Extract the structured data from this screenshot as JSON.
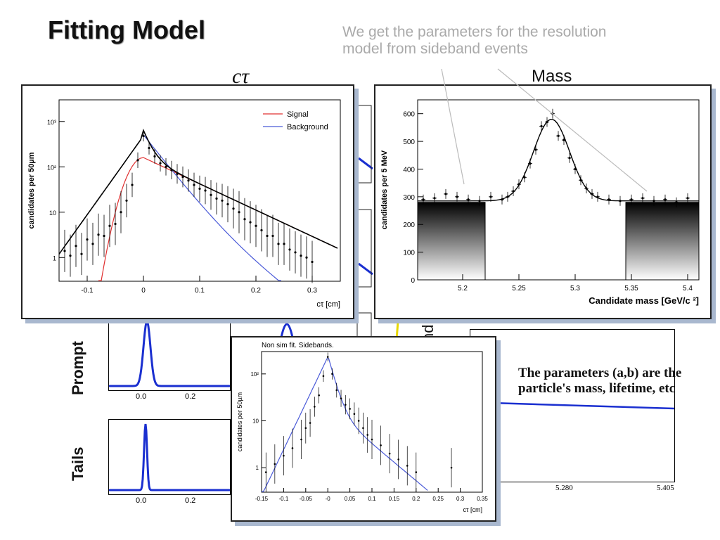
{
  "slide": {
    "title": "Fitting Model",
    "note": "We get the parameters for the resolution model from sideband events",
    "ct_header": "cτ",
    "mass_header": "Mass",
    "params_text": "The parameters (a,b) are the particle's mass, lifetime, etc",
    "prompt_label": "Prompt",
    "tails_label": "Tails",
    "partial_label": "nd"
  },
  "colors": {
    "signal": "#e03030",
    "background": "#4a5ad8",
    "fit": "#000000",
    "component": "#1a2fd0"
  },
  "chart_data": [
    {
      "id": "ct-fit",
      "type": "scatter",
      "xlabel": "cτ [cm]",
      "ylabel": "candidates per 50µm",
      "xlim": [
        -0.15,
        0.35
      ],
      "ylog": true,
      "ylim": [
        0.3,
        3000
      ],
      "xticks": [
        "-0.1",
        "0",
        "0.1",
        "0.2",
        "0.3"
      ],
      "yticks": [
        "1",
        "10",
        "10²",
        "10³"
      ],
      "legend": [
        "Signal",
        "Background"
      ],
      "legend_position": "top-right",
      "series": [
        {
          "name": "Signal",
          "kind": "curve"
        },
        {
          "name": "Background",
          "kind": "curve"
        }
      ],
      "points": [
        {
          "x": -0.14,
          "y": 1.4
        },
        {
          "x": -0.13,
          "y": 1.1
        },
        {
          "x": -0.12,
          "y": 1.8
        },
        {
          "x": -0.11,
          "y": 1.2
        },
        {
          "x": -0.1,
          "y": 2.5
        },
        {
          "x": -0.09,
          "y": 2.0
        },
        {
          "x": -0.08,
          "y": 3.2
        },
        {
          "x": -0.07,
          "y": 3.0
        },
        {
          "x": -0.06,
          "y": 5.0
        },
        {
          "x": -0.05,
          "y": 5.5
        },
        {
          "x": -0.04,
          "y": 10
        },
        {
          "x": -0.03,
          "y": 18
        },
        {
          "x": -0.02,
          "y": 40
        },
        {
          "x": -0.01,
          "y": 140
        },
        {
          "x": 0.0,
          "y": 480
        },
        {
          "x": 0.01,
          "y": 260
        },
        {
          "x": 0.02,
          "y": 170
        },
        {
          "x": 0.03,
          "y": 120
        },
        {
          "x": 0.04,
          "y": 100
        },
        {
          "x": 0.05,
          "y": 85
        },
        {
          "x": 0.06,
          "y": 70
        },
        {
          "x": 0.07,
          "y": 60
        },
        {
          "x": 0.08,
          "y": 50
        },
        {
          "x": 0.09,
          "y": 40
        },
        {
          "x": 0.1,
          "y": 33
        },
        {
          "x": 0.11,
          "y": 30
        },
        {
          "x": 0.12,
          "y": 24
        },
        {
          "x": 0.13,
          "y": 20
        },
        {
          "x": 0.14,
          "y": 18
        },
        {
          "x": 0.15,
          "y": 15
        },
        {
          "x": 0.16,
          "y": 12
        },
        {
          "x": 0.17,
          "y": 10
        },
        {
          "x": 0.18,
          "y": 7
        },
        {
          "x": 0.19,
          "y": 6
        },
        {
          "x": 0.2,
          "y": 5
        },
        {
          "x": 0.21,
          "y": 4
        },
        {
          "x": 0.22,
          "y": 3
        },
        {
          "x": 0.23,
          "y": 3
        },
        {
          "x": 0.24,
          "y": 2
        },
        {
          "x": 0.25,
          "y": 2
        },
        {
          "x": 0.26,
          "y": 1.5
        },
        {
          "x": 0.27,
          "y": 1.3
        },
        {
          "x": 0.28,
          "y": 1.1
        },
        {
          "x": 0.29,
          "y": 1.0
        },
        {
          "x": 0.3,
          "y": 0.8
        }
      ]
    },
    {
      "id": "mass-fit",
      "type": "scatter",
      "xlabel": "Candidate mass [GeV/c ²]",
      "ylabel": "candidates per 5 MeV",
      "xlim": [
        5.16,
        5.41
      ],
      "ylim": [
        0,
        650
      ],
      "xticks": [
        "5.2",
        "5.25",
        "5.3",
        "5.35",
        "5.4"
      ],
      "yticks": [
        "0",
        "100",
        "200",
        "300",
        "400",
        "500",
        "600"
      ],
      "sidebands": [
        [
          5.16,
          5.22
        ],
        [
          5.345,
          5.41
        ]
      ],
      "points": [
        {
          "x": 5.165,
          "y": 290
        },
        {
          "x": 5.175,
          "y": 295
        },
        {
          "x": 5.185,
          "y": 310
        },
        {
          "x": 5.195,
          "y": 300
        },
        {
          "x": 5.205,
          "y": 290
        },
        {
          "x": 5.215,
          "y": 285
        },
        {
          "x": 5.225,
          "y": 300
        },
        {
          "x": 5.235,
          "y": 290
        },
        {
          "x": 5.24,
          "y": 300
        },
        {
          "x": 5.245,
          "y": 320
        },
        {
          "x": 5.25,
          "y": 345
        },
        {
          "x": 5.255,
          "y": 370
        },
        {
          "x": 5.26,
          "y": 420
        },
        {
          "x": 5.265,
          "y": 470
        },
        {
          "x": 5.27,
          "y": 555
        },
        {
          "x": 5.275,
          "y": 570
        },
        {
          "x": 5.28,
          "y": 600
        },
        {
          "x": 5.285,
          "y": 520
        },
        {
          "x": 5.29,
          "y": 505
        },
        {
          "x": 5.295,
          "y": 440
        },
        {
          "x": 5.3,
          "y": 400
        },
        {
          "x": 5.305,
          "y": 360
        },
        {
          "x": 5.31,
          "y": 330
        },
        {
          "x": 5.315,
          "y": 310
        },
        {
          "x": 5.32,
          "y": 300
        },
        {
          "x": 5.33,
          "y": 290
        },
        {
          "x": 5.34,
          "y": 285
        },
        {
          "x": 5.35,
          "y": 290
        },
        {
          "x": 5.36,
          "y": 295
        },
        {
          "x": 5.37,
          "y": 285
        },
        {
          "x": 5.38,
          "y": 290
        },
        {
          "x": 5.39,
          "y": 280
        },
        {
          "x": 5.4,
          "y": 295
        }
      ]
    },
    {
      "id": "sideband-fit",
      "type": "scatter",
      "title": "Non sim fit. Sidebands.",
      "xlabel": "cτ [cm]",
      "ylabel": "candidates per 50µm",
      "xlim": [
        -0.15,
        0.35
      ],
      "ylog": true,
      "ylim": [
        0.3,
        300
      ],
      "xticks": [
        "-0.15",
        "-0.1",
        "-0.05",
        "-0",
        "0.05",
        "0.1",
        "0.15",
        "0.2",
        "0.25",
        "0.3",
        "0.35"
      ],
      "yticks": [
        "1",
        "10",
        "10²"
      ],
      "points": [
        {
          "x": -0.14,
          "y": 0.8
        },
        {
          "x": -0.12,
          "y": 1.2
        },
        {
          "x": -0.1,
          "y": 1.8
        },
        {
          "x": -0.08,
          "y": 2.6
        },
        {
          "x": -0.06,
          "y": 4.0
        },
        {
          "x": -0.05,
          "y": 7
        },
        {
          "x": -0.04,
          "y": 9
        },
        {
          "x": -0.03,
          "y": 20
        },
        {
          "x": -0.02,
          "y": 35
        },
        {
          "x": -0.01,
          "y": 90
        },
        {
          "x": 0.0,
          "y": 230
        },
        {
          "x": 0.01,
          "y": 100
        },
        {
          "x": 0.02,
          "y": 45
        },
        {
          "x": 0.03,
          "y": 30
        },
        {
          "x": 0.04,
          "y": 22
        },
        {
          "x": 0.05,
          "y": 18
        },
        {
          "x": 0.06,
          "y": 14
        },
        {
          "x": 0.07,
          "y": 10
        },
        {
          "x": 0.08,
          "y": 7
        },
        {
          "x": 0.09,
          "y": 5
        },
        {
          "x": 0.1,
          "y": 4
        },
        {
          "x": 0.12,
          "y": 3
        },
        {
          "x": 0.14,
          "y": 2
        },
        {
          "x": 0.16,
          "y": 1.5
        },
        {
          "x": 0.18,
          "y": 1.1
        },
        {
          "x": 0.2,
          "y": 0.8
        },
        {
          "x": 0.28,
          "y": 1.0
        }
      ]
    },
    {
      "id": "prompt",
      "type": "line",
      "xticks": [
        "0.0",
        "0.2"
      ]
    },
    {
      "id": "tails",
      "type": "line",
      "xticks": [
        "0.0",
        "0.2"
      ]
    },
    {
      "id": "mass-small",
      "type": "line",
      "xticks": [
        "5.280",
        "5.405"
      ]
    }
  ]
}
